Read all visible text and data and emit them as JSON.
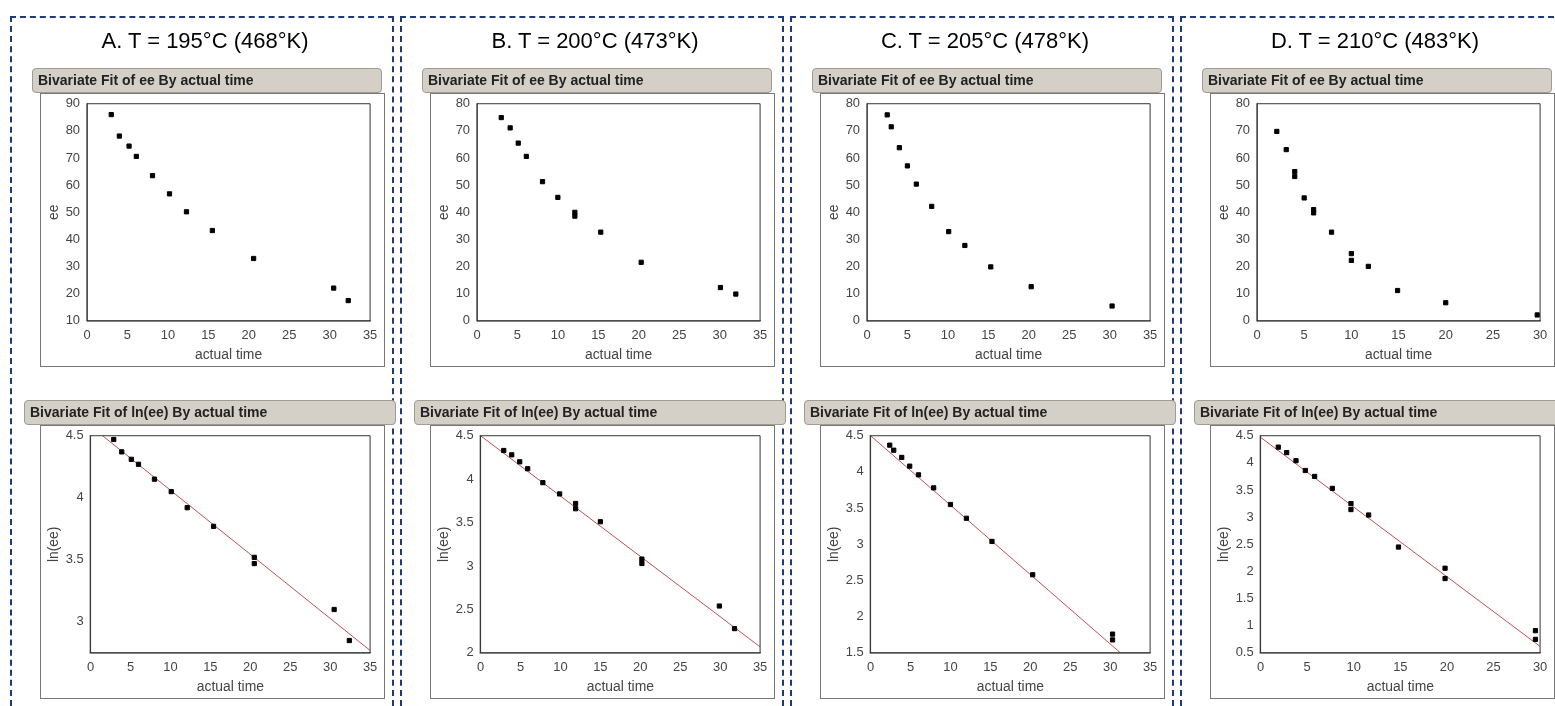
{
  "chart_data": [
    {
      "type": "scatter",
      "title": "A.  T = 195°C (468°K)",
      "subtitle": "Bivariate Fit of ee By actual time",
      "xlabel": "actual time",
      "ylabel": "ee",
      "xlim": [
        0,
        35
      ],
      "xticks": [
        0,
        5,
        10,
        15,
        20,
        25,
        30,
        35
      ],
      "ylim": [
        10,
        90
      ],
      "yticks": [
        10,
        20,
        30,
        40,
        50,
        60,
        70,
        80,
        90
      ],
      "marker": "square",
      "series": [
        {
          "color": "#000000",
          "x": [
            3.0,
            4.0,
            5.2,
            6.1,
            8.1,
            10.2,
            12.3,
            15.5,
            20.6,
            30.5,
            32.3
          ],
          "values": [
            86.0,
            78.1,
            74.4,
            70.6,
            63.5,
            56.8,
            50.2,
            43.3,
            33.0,
            22.1,
            17.5
          ]
        }
      ]
    },
    {
      "type": "scatter",
      "title": "B.  T = 200°C (473°K)",
      "subtitle": "Bivariate Fit of ee By actual time",
      "xlabel": "actual time",
      "ylabel": "ee",
      "xlim": [
        0,
        35
      ],
      "xticks": [
        0,
        5,
        10,
        15,
        20,
        25,
        30,
        35
      ],
      "ylim": [
        0,
        80
      ],
      "yticks": [
        0,
        10,
        20,
        30,
        40,
        50,
        60,
        70,
        80
      ],
      "marker": "square",
      "series": [
        {
          "color": "#000000",
          "x": [
            3.0,
            4.1,
            5.1,
            6.1,
            8.1,
            10.0,
            12.1,
            12.1,
            15.3,
            20.3,
            30.1,
            32.0
          ],
          "values": [
            74.9,
            71.1,
            65.5,
            60.6,
            51.3,
            45.5,
            40.0,
            38.6,
            32.7,
            21.6,
            12.3,
            9.9
          ]
        }
      ]
    },
    {
      "type": "scatter",
      "title": "C.  T = 205°C (478°K)",
      "subtitle": "Bivariate Fit of ee By actual time",
      "xlabel": "actual time",
      "ylabel": "ee",
      "xlim": [
        0,
        35
      ],
      "xticks": [
        0,
        5,
        10,
        15,
        20,
        25,
        30,
        35
      ],
      "ylim": [
        0,
        80
      ],
      "yticks": [
        0,
        10,
        20,
        30,
        40,
        50,
        60,
        70,
        80
      ],
      "marker": "square",
      "series": [
        {
          "color": "#000000",
          "x": [
            2.5,
            3.0,
            4.0,
            5.0,
            6.1,
            8.0,
            10.1,
            12.1,
            15.3,
            20.3,
            30.3
          ],
          "values": [
            75.9,
            71.5,
            63.8,
            57.1,
            50.4,
            42.2,
            32.9,
            27.8,
            19.9,
            12.6,
            5.5
          ]
        }
      ]
    },
    {
      "type": "scatter",
      "title": "D.  T = 210°C (483°K)",
      "subtitle": "Bivariate Fit of ee By actual time",
      "xlabel": "actual time",
      "ylabel": "ee",
      "xlim": [
        0,
        30
      ],
      "xticks": [
        0,
        5,
        10,
        15,
        20,
        25,
        30
      ],
      "ylim": [
        0,
        80
      ],
      "yticks": [
        0,
        10,
        20,
        30,
        40,
        50,
        60,
        70,
        80
      ],
      "marker": "square",
      "series": [
        {
          "color": "#000000",
          "x": [
            2.1,
            3.1,
            4.0,
            4.0,
            5.0,
            6.0,
            6.0,
            7.9,
            10.0,
            10.0,
            11.8,
            14.9,
            20.0,
            29.7
          ],
          "values": [
            69.8,
            63.1,
            55.0,
            53.2,
            45.3,
            41.0,
            39.8,
            32.7,
            24.8,
            22.3,
            20.1,
            11.2,
            6.7,
            2.2
          ]
        }
      ]
    },
    {
      "type": "scatter",
      "title": "Bivariate Fit of ln(ee) By actual time",
      "xlabel": "actual time",
      "ylabel": "ln(ee)",
      "xlim": [
        0,
        35
      ],
      "xticks": [
        0,
        5,
        10,
        15,
        20,
        25,
        30,
        35
      ],
      "ylim": [
        2.75,
        4.5
      ],
      "yticks": [
        3,
        3.5,
        4,
        4.5
      ],
      "series": [
        {
          "color": "#000000",
          "marker": "square",
          "x": [
            2.9,
            3.9,
            5.1,
            6.0,
            8.0,
            10.1,
            12.1,
            15.4,
            20.5,
            20.5,
            30.5,
            32.4
          ],
          "values": [
            4.47,
            4.37,
            4.31,
            4.27,
            4.15,
            4.05,
            3.92,
            3.77,
            3.52,
            3.47,
            3.1,
            2.85
          ]
        },
        {
          "type": "line",
          "color": "#c0504d",
          "marker": "none",
          "x": [
            1.5,
            35
          ],
          "values": [
            4.5,
            2.77
          ]
        }
      ]
    },
    {
      "type": "scatter",
      "title": "Bivariate Fit of ln(ee) By actual time",
      "xlabel": "actual time",
      "ylabel": "ln(ee)",
      "xlim": [
        0,
        35
      ],
      "xticks": [
        0,
        5,
        10,
        15,
        20,
        25,
        30,
        35
      ],
      "ylim": [
        2,
        4.5
      ],
      "yticks": [
        2,
        2.5,
        3,
        3.5,
        4,
        4.5
      ],
      "series": [
        {
          "color": "#000000",
          "marker": "square",
          "x": [
            2.9,
            3.9,
            4.9,
            5.9,
            7.8,
            9.9,
            11.9,
            11.9,
            15.0,
            20.2,
            20.2,
            29.9,
            31.8
          ],
          "values": [
            4.33,
            4.28,
            4.2,
            4.12,
            3.96,
            3.83,
            3.72,
            3.66,
            3.51,
            3.08,
            3.03,
            2.54,
            2.28
          ]
        },
        {
          "type": "line",
          "color": "#c0504d",
          "marker": "none",
          "x": [
            0,
            35
          ],
          "values": [
            4.5,
            2.07
          ]
        }
      ]
    },
    {
      "type": "scatter",
      "title": "Bivariate Fit of ln(ee) By actual time",
      "xlabel": "actual time",
      "ylabel": "ln(ee)",
      "xlim": [
        0,
        35
      ],
      "xticks": [
        0,
        5,
        10,
        15,
        20,
        25,
        30,
        35
      ],
      "ylim": [
        1.5,
        4.5
      ],
      "yticks": [
        1.5,
        2,
        2.5,
        3,
        3.5,
        4,
        4.5
      ],
      "series": [
        {
          "color": "#000000",
          "marker": "square",
          "x": [
            2.4,
            2.9,
            3.9,
            4.9,
            6.0,
            7.9,
            10.0,
            12.0,
            15.2,
            20.3,
            30.3,
            30.3
          ],
          "values": [
            4.37,
            4.3,
            4.2,
            4.08,
            3.96,
            3.78,
            3.55,
            3.36,
            3.04,
            2.58,
            1.76,
            1.68
          ]
        },
        {
          "type": "line",
          "color": "#c0504d",
          "marker": "none",
          "x": [
            0,
            31.3
          ],
          "values": [
            4.5,
            1.5
          ]
        }
      ]
    },
    {
      "type": "scatter",
      "title": "Bivariate Fit of ln(ee) By actual time",
      "xlabel": "actual time",
      "ylabel": "ln(ee)",
      "xlim": [
        0,
        30
      ],
      "xticks": [
        0,
        5,
        10,
        15,
        20,
        25,
        30
      ],
      "ylim": [
        0.5,
        4.5
      ],
      "yticks": [
        0.5,
        1,
        1.5,
        2,
        2.5,
        3,
        3.5,
        4,
        4.5
      ],
      "series": [
        {
          "color": "#000000",
          "marker": "square",
          "x": [
            1.9,
            2.8,
            3.8,
            4.8,
            5.8,
            7.7,
            9.7,
            9.7,
            11.6,
            14.8,
            19.8,
            19.8,
            29.5,
            29.5
          ],
          "values": [
            4.29,
            4.19,
            4.04,
            3.86,
            3.75,
            3.53,
            3.25,
            3.14,
            3.04,
            2.45,
            2.06,
            1.87,
            0.91,
            0.75
          ]
        },
        {
          "type": "line",
          "color": "#c0504d",
          "marker": "none",
          "x": [
            0,
            30
          ],
          "values": [
            4.47,
            0.62
          ]
        }
      ]
    }
  ]
}
